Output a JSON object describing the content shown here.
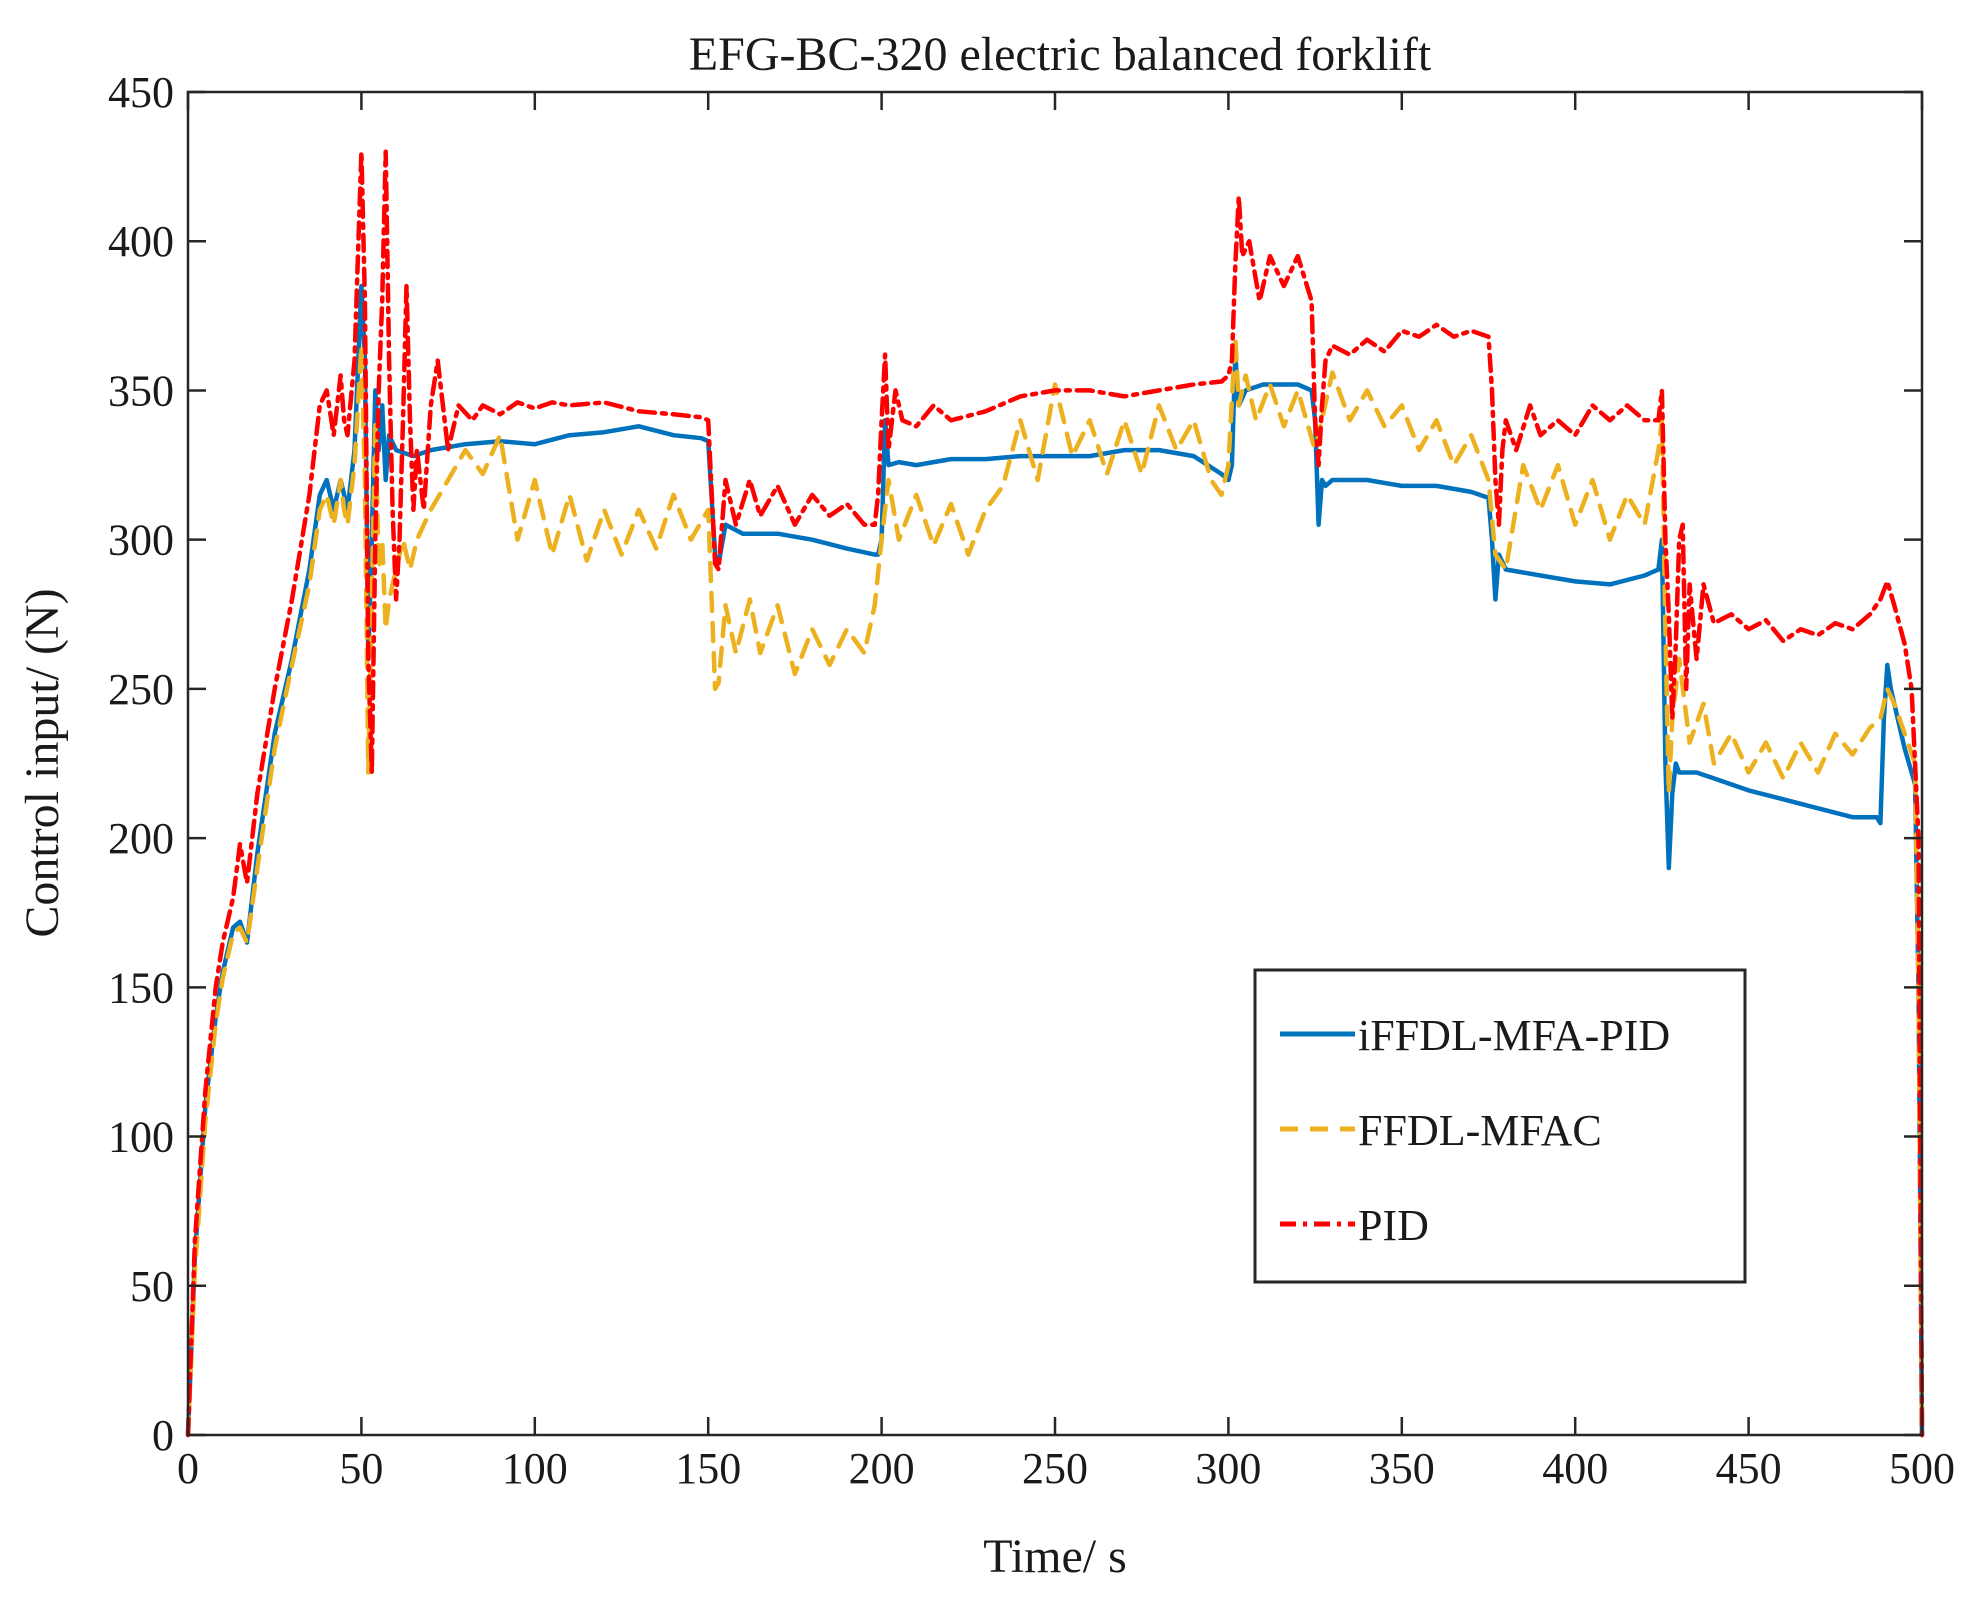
{
  "chart_data": {
    "type": "line",
    "title": "EFG-BC-320 electric balanced forklift",
    "xlabel": "Time/ s",
    "ylabel": "Control input/ (N)",
    "xlim": [
      0,
      500
    ],
    "ylim": [
      0,
      450
    ],
    "xticks": [
      0,
      50,
      100,
      150,
      200,
      250,
      300,
      350,
      400,
      450,
      500
    ],
    "yticks": [
      0,
      50,
      100,
      150,
      200,
      250,
      300,
      350,
      400,
      450
    ],
    "grid": false,
    "legend_position": "bottom-right",
    "series": [
      {
        "name": "iFFDL-MFA-PID",
        "color": "#0072BD",
        "dash": "solid",
        "x": [
          0,
          2,
          5,
          8,
          10,
          13,
          15,
          17,
          20,
          25,
          30,
          35,
          38,
          40,
          42,
          44,
          45,
          46,
          48,
          50,
          51,
          52,
          53,
          54,
          55,
          56,
          57,
          58,
          60,
          65,
          70,
          80,
          90,
          100,
          110,
          120,
          130,
          140,
          148,
          150,
          152,
          153,
          155,
          160,
          170,
          180,
          190,
          198,
          199,
          200,
          201,
          202,
          205,
          210,
          220,
          230,
          240,
          250,
          260,
          270,
          280,
          290,
          298,
          300,
          301,
          302,
          303,
          305,
          310,
          320,
          324,
          325,
          326,
          327,
          328,
          330,
          340,
          350,
          360,
          370,
          375,
          376,
          377,
          378,
          380,
          390,
          400,
          410,
          420,
          424,
          425,
          426,
          427,
          428,
          429,
          430,
          435,
          440,
          450,
          460,
          470,
          480,
          487,
          488,
          489,
          490,
          491,
          492,
          495,
          498,
          499,
          500
        ],
        "values": [
          0,
          60,
          110,
          140,
          155,
          170,
          172,
          165,
          195,
          235,
          260,
          290,
          315,
          320,
          310,
          320,
          315,
          310,
          330,
          385,
          360,
          260,
          300,
          350,
          330,
          345,
          320,
          335,
          330,
          328,
          330,
          332,
          333,
          332,
          335,
          336,
          338,
          335,
          334,
          333,
          295,
          292,
          305,
          302,
          302,
          300,
          297,
          295,
          295,
          300,
          340,
          325,
          326,
          325,
          327,
          327,
          328,
          328,
          328,
          330,
          330,
          328,
          322,
          320,
          325,
          362,
          345,
          350,
          352,
          352,
          350,
          340,
          305,
          320,
          318,
          320,
          320,
          318,
          318,
          316,
          314,
          300,
          280,
          295,
          290,
          288,
          286,
          285,
          288,
          290,
          300,
          225,
          190,
          215,
          225,
          222,
          222,
          220,
          216,
          213,
          210,
          207,
          207,
          205,
          240,
          258,
          250,
          245,
          230,
          218,
          150,
          0
        ]
      },
      {
        "name": "FFDL-MFAC",
        "color": "#EDB120",
        "dash": "dashed",
        "x": [
          0,
          2,
          5,
          8,
          10,
          13,
          15,
          17,
          20,
          25,
          30,
          35,
          38,
          40,
          42,
          44,
          45,
          46,
          48,
          50,
          51,
          52,
          53,
          54,
          55,
          56,
          57,
          58,
          60,
          62,
          64,
          66,
          70,
          75,
          80,
          85,
          90,
          95,
          100,
          105,
          110,
          115,
          120,
          125,
          130,
          135,
          140,
          145,
          150,
          152,
          153,
          155,
          158,
          162,
          165,
          170,
          175,
          180,
          185,
          190,
          195,
          198,
          200,
          202,
          205,
          210,
          215,
          220,
          225,
          230,
          235,
          240,
          245,
          250,
          255,
          260,
          265,
          270,
          275,
          280,
          285,
          290,
          295,
          298,
          300,
          302,
          303,
          305,
          308,
          312,
          316,
          320,
          325,
          330,
          335,
          340,
          345,
          350,
          355,
          360,
          365,
          370,
          375,
          377,
          380,
          385,
          390,
          395,
          400,
          405,
          410,
          415,
          420,
          424,
          425,
          426,
          427,
          428,
          430,
          433,
          437,
          440,
          445,
          450,
          455,
          460,
          465,
          470,
          475,
          480,
          485,
          488,
          490,
          492,
          495,
          498,
          499,
          500
        ],
        "values": [
          0,
          55,
          105,
          138,
          153,
          168,
          170,
          165,
          190,
          230,
          258,
          285,
          310,
          315,
          305,
          320,
          310,
          305,
          325,
          365,
          320,
          222,
          280,
          340,
          290,
          300,
          270,
          280,
          290,
          300,
          290,
          300,
          310,
          320,
          330,
          322,
          335,
          300,
          320,
          295,
          315,
          293,
          310,
          295,
          310,
          297,
          315,
          300,
          310,
          250,
          252,
          278,
          262,
          280,
          262,
          278,
          255,
          270,
          258,
          270,
          262,
          278,
          300,
          320,
          300,
          315,
          298,
          312,
          295,
          310,
          318,
          340,
          320,
          352,
          328,
          340,
          322,
          340,
          322,
          345,
          330,
          340,
          320,
          315,
          325,
          368,
          345,
          355,
          340,
          352,
          338,
          350,
          330,
          356,
          340,
          350,
          338,
          345,
          330,
          340,
          325,
          335,
          320,
          295,
          290,
          325,
          310,
          325,
          305,
          320,
          300,
          315,
          305,
          330,
          340,
          270,
          215,
          240,
          260,
          232,
          245,
          225,
          235,
          222,
          232,
          220,
          232,
          222,
          235,
          228,
          237,
          240,
          250,
          245,
          235,
          225,
          150,
          0
        ]
      },
      {
        "name": "PID",
        "color": "#FF0000",
        "dash": "dashdot",
        "x": [
          0,
          2,
          5,
          8,
          10,
          13,
          15,
          17,
          20,
          25,
          30,
          35,
          38,
          40,
          42,
          44,
          45,
          46,
          48,
          50,
          51,
          52,
          53,
          54,
          55,
          56,
          57,
          58,
          59,
          60,
          61,
          62,
          63,
          64,
          65,
          66,
          68,
          70,
          72,
          75,
          78,
          82,
          85,
          90,
          95,
          100,
          105,
          110,
          120,
          130,
          140,
          148,
          150,
          152,
          153,
          155,
          158,
          162,
          165,
          170,
          175,
          180,
          185,
          190,
          195,
          198,
          199,
          200,
          201,
          202,
          204,
          206,
          210,
          215,
          220,
          230,
          240,
          250,
          260,
          270,
          280,
          290,
          298,
          300,
          301,
          302,
          303,
          304,
          306,
          309,
          312,
          316,
          320,
          324,
          325,
          326,
          327,
          328,
          330,
          335,
          340,
          345,
          350,
          355,
          360,
          365,
          370,
          375,
          376,
          377,
          378,
          379,
          380,
          383,
          387,
          390,
          395,
          400,
          405,
          410,
          415,
          420,
          424,
          425,
          426,
          427,
          428,
          429,
          430,
          431,
          432,
          433,
          435,
          437,
          440,
          445,
          450,
          455,
          460,
          465,
          470,
          475,
          480,
          485,
          488,
          490,
          492,
          495,
          497,
          499,
          500
        ],
        "values": [
          0,
          65,
          115,
          150,
          165,
          180,
          198,
          185,
          215,
          250,
          280,
          315,
          345,
          350,
          335,
          355,
          340,
          335,
          360,
          430,
          380,
          260,
          222,
          300,
          350,
          380,
          430,
          360,
          310,
          280,
          300,
          340,
          385,
          340,
          310,
          330,
          310,
          345,
          360,
          330,
          345,
          340,
          345,
          342,
          346,
          344,
          346,
          345,
          346,
          343,
          342,
          341,
          340,
          292,
          290,
          320,
          305,
          320,
          308,
          318,
          305,
          315,
          308,
          312,
          305,
          305,
          315,
          340,
          362,
          330,
          350,
          340,
          338,
          345,
          340,
          343,
          348,
          350,
          350,
          348,
          350,
          352,
          353,
          355,
          360,
          392,
          415,
          395,
          400,
          380,
          395,
          385,
          395,
          380,
          340,
          325,
          345,
          360,
          365,
          362,
          367,
          363,
          370,
          368,
          372,
          368,
          370,
          368,
          350,
          320,
          305,
          330,
          340,
          330,
          345,
          335,
          340,
          335,
          345,
          340,
          345,
          340,
          340,
          350,
          300,
          275,
          240,
          265,
          300,
          305,
          250,
          285,
          260,
          285,
          272,
          275,
          270,
          273,
          266,
          270,
          268,
          272,
          270,
          275,
          280,
          286,
          278,
          265,
          250,
          200,
          0
        ]
      }
    ]
  }
}
